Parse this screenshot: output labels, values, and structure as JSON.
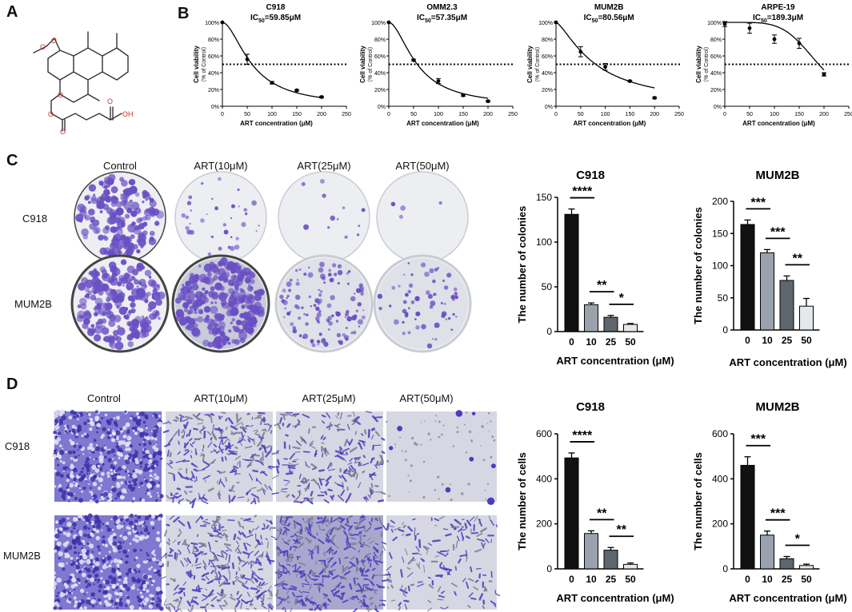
{
  "panels": {
    "A": "A",
    "B": "B",
    "C": "C",
    "D": "D"
  },
  "molecule": {
    "label_oh": "OH"
  },
  "colony_row_labels": [
    "C918",
    "MUM2B"
  ],
  "colony_col_labels": [
    "Control",
    "ART(10μM)",
    "ART(25μM)",
    "ART(50μM)"
  ],
  "migration_row_labels": [
    "C918",
    "MUM2B"
  ],
  "migration_col_labels": [
    "Control",
    "ART(10μM)",
    "ART(25μM)",
    "ART(50μM)"
  ],
  "colors": {
    "stain": "#6a4fc4",
    "bar0": "#111111",
    "bar1": "#9aa3ad",
    "bar2": "#5f666e",
    "bar3": "#e4e8ea"
  },
  "chart_data": [
    {
      "type": "scatter",
      "id": "B1",
      "title": "C918",
      "ic50_prefix": "IC",
      "ic50_sub": "50",
      "ic50_value": "=59.85μM",
      "xlabel": "ART concentration (μM)",
      "ylabel": "Cell viability",
      "ylabel2": "（% of Control）",
      "xlim": [
        0,
        250
      ],
      "xticks": [
        "0",
        "50",
        "100",
        "150",
        "200",
        "250"
      ],
      "ylim": [
        0,
        100
      ],
      "yticks": [
        "0%",
        "20%",
        "40%",
        "60%",
        "80%",
        "100%"
      ],
      "x": [
        0,
        50,
        100,
        150,
        200
      ],
      "y": [
        100,
        56,
        28,
        19,
        11
      ],
      "err": [
        0,
        6,
        1.5,
        1,
        1
      ],
      "reference_line": 50
    },
    {
      "type": "scatter",
      "id": "B2",
      "title": "OMM2.3",
      "ic50_prefix": "IC",
      "ic50_sub": "50",
      "ic50_value": "=57.35μM",
      "xlabel": "ART concentration (μM)",
      "ylabel": "Cell viability",
      "ylabel2": "（% of Control）",
      "xlim": [
        0,
        250
      ],
      "xticks": [
        "0",
        "50",
        "100",
        "150",
        "200",
        "250"
      ],
      "ylim": [
        0,
        100
      ],
      "yticks": [
        "0%",
        "20%",
        "40%",
        "60%",
        "80%",
        "100%"
      ],
      "x": [
        0,
        50,
        100,
        150,
        200
      ],
      "y": [
        100,
        55,
        30,
        13,
        6
      ],
      "err": [
        0,
        1,
        3,
        1,
        1
      ],
      "reference_line": 50
    },
    {
      "type": "scatter",
      "id": "B3",
      "title": "MUM2B",
      "ic50_prefix": "IC",
      "ic50_sub": "50",
      "ic50_value": "=80.56μM",
      "xlabel": "ART concentration (μM)",
      "ylabel": "Cell viability",
      "ylabel2": "（% of Control）",
      "xlim": [
        0,
        250
      ],
      "xticks": [
        "0",
        "50",
        "100",
        "150",
        "200",
        "250"
      ],
      "ylim": [
        0,
        100
      ],
      "yticks": [
        "0%",
        "20%",
        "40%",
        "60%",
        "80%",
        "100%"
      ],
      "x": [
        0,
        50,
        100,
        150,
        200
      ],
      "y": [
        100,
        65,
        47,
        30,
        10
      ],
      "err": [
        0,
        6,
        4,
        1,
        1
      ],
      "reference_line": 50
    },
    {
      "type": "scatter",
      "id": "B4",
      "title": "ARPE-19",
      "ic50_prefix": "IC",
      "ic50_sub": "50",
      "ic50_value": "=189.3μM",
      "xlabel": "ART concentration (μM)",
      "ylabel": "Cell viability",
      "ylabel2": "（% of Control）",
      "xlim": [
        0,
        250
      ],
      "xticks": [
        "0",
        "50",
        "100",
        "150",
        "200",
        "250"
      ],
      "ylim": [
        0,
        100
      ],
      "yticks": [
        "0%",
        "20%",
        "40%",
        "60%",
        "80%",
        "100%"
      ],
      "x": [
        0,
        50,
        100,
        150,
        200
      ],
      "y": [
        98,
        93,
        80,
        75,
        38
      ],
      "err": [
        3,
        6,
        5,
        6,
        2
      ],
      "reference_line": 50
    },
    {
      "type": "bar",
      "id": "C1",
      "title": "C918",
      "xlabel": "ART concentration (μM)",
      "ylabel": "The number of colonies",
      "categories": [
        "0",
        "10",
        "25",
        "50"
      ],
      "values": [
        131,
        30,
        16,
        8
      ],
      "err": [
        6,
        2,
        2,
        1
      ],
      "ylim": [
        0,
        150
      ],
      "yticks": [
        "0",
        "50",
        "100",
        "150"
      ],
      "significance": [
        {
          "from": 0,
          "to": 1,
          "label": "****"
        },
        {
          "from": 1,
          "to": 2,
          "label": "**"
        },
        {
          "from": 2,
          "to": 3,
          "label": "*"
        }
      ]
    },
    {
      "type": "bar",
      "id": "C2",
      "title": "MUM2B",
      "xlabel": "ART concentration (μM)",
      "ylabel": "The number of colonies",
      "categories": [
        "0",
        "10",
        "25",
        "50"
      ],
      "values": [
        164,
        120,
        77,
        37
      ],
      "err": [
        7,
        5,
        7,
        12
      ],
      "ylim": [
        0,
        200
      ],
      "yticks": [
        "0",
        "50",
        "100",
        "150",
        "200"
      ],
      "significance": [
        {
          "from": 0,
          "to": 1,
          "label": "***"
        },
        {
          "from": 1,
          "to": 2,
          "label": "***"
        },
        {
          "from": 2,
          "to": 3,
          "label": "**"
        }
      ]
    },
    {
      "type": "bar",
      "id": "D1",
      "title": "C918",
      "xlabel": "ART concentration (μM)",
      "ylabel": "The number of cells",
      "categories": [
        "0",
        "10",
        "25",
        "50"
      ],
      "values": [
        493,
        157,
        83,
        20
      ],
      "err": [
        22,
        12,
        12,
        6
      ],
      "ylim": [
        0,
        600
      ],
      "yticks": [
        "0",
        "200",
        "400",
        "600"
      ],
      "significance": [
        {
          "from": 0,
          "to": 1,
          "label": "****"
        },
        {
          "from": 1,
          "to": 2,
          "label": "**"
        },
        {
          "from": 2,
          "to": 3,
          "label": "**"
        }
      ]
    },
    {
      "type": "bar",
      "id": "D2",
      "title": "MUM2B",
      "xlabel": "ART concentration (μM)",
      "ylabel": "The number of cells",
      "categories": [
        "0",
        "10",
        "25",
        "50"
      ],
      "values": [
        460,
        150,
        45,
        15
      ],
      "err": [
        38,
        18,
        10,
        6
      ],
      "ylim": [
        0,
        600
      ],
      "yticks": [
        "0",
        "200",
        "400",
        "600"
      ],
      "significance": [
        {
          "from": 0,
          "to": 1,
          "label": "***"
        },
        {
          "from": 1,
          "to": 2,
          "label": "***"
        },
        {
          "from": 2,
          "to": 3,
          "label": "*"
        }
      ]
    }
  ]
}
